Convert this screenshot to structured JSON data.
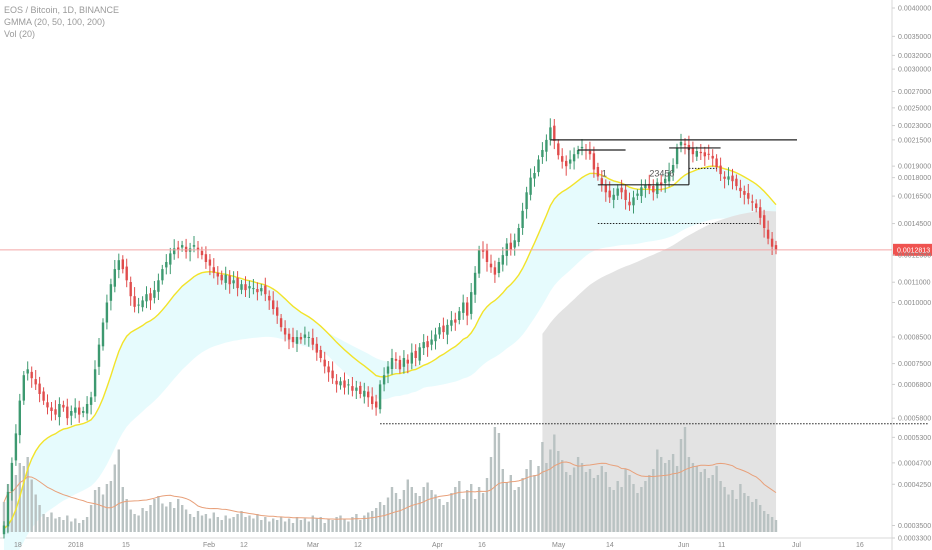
{
  "legend": {
    "symbol_line": "EOS / Bitcoin, 1D, BINANCE",
    "gmma_line": "GMMA (20, 50, 100, 200)",
    "vol_line": "Vol (20)"
  },
  "colors": {
    "up": "#3d9970",
    "down": "#e04c4c",
    "ema_fast": "#f2e32a",
    "band_light": "#e6fbfd",
    "band_gray": "#e3e3e3",
    "volume": "#b9c2c2",
    "vol_ma": "#e8a07a",
    "price_line": "#f3a6a6",
    "price_tag": "#ef5350"
  },
  "chart_data": {
    "type": "candlestick",
    "y_axis": {
      "ticks": [
        "0.0040000",
        "0.0035000",
        "0.0032000",
        "0.0030000",
        "0.0027000",
        "0.0025000",
        "0.0023000",
        "0.0021500",
        "0.0019000",
        "0.0018000",
        "0.0016500",
        "0.0014500",
        "0.0012500",
        "0.0011000",
        "0.0010000",
        "0.0008500",
        "0.0007500",
        "0.0006800",
        "0.0005800",
        "0.0005300",
        "0.0004700",
        "0.0004250",
        "0.0003500",
        "0.0003300"
      ],
      "current_price": "0.0012813",
      "scale": "log"
    },
    "x_axis": {
      "ticks": [
        "18",
        "2018",
        "15",
        "Feb",
        "12",
        "Mar",
        "12",
        "Apr",
        "16",
        "May",
        "14",
        "Jun",
        "11",
        "Jul",
        "16"
      ]
    },
    "annotations": {
      "count_1": "1",
      "count_2": "23456"
    },
    "closes": [
      0.00035,
      0.00041,
      0.00047,
      0.00054,
      0.00063,
      0.00071,
      0.00073,
      0.0007,
      0.00068,
      0.00065,
      0.00063,
      0.00061,
      0.0006,
      0.00059,
      0.00062,
      0.00061,
      0.00058,
      0.0006,
      0.00061,
      0.00059,
      0.0006,
      0.00062,
      0.00064,
      0.00073,
      0.00082,
      0.00091,
      0.001,
      0.00109,
      0.00117,
      0.00122,
      0.00117,
      0.00111,
      0.00103,
      0.00098,
      0.00099,
      0.00101,
      0.00104,
      0.00101,
      0.00106,
      0.00111,
      0.00117,
      0.00121,
      0.00126,
      0.00129,
      0.00128,
      0.00131,
      0.00127,
      0.00129,
      0.00131,
      0.00128,
      0.00125,
      0.00121,
      0.00119,
      0.00115,
      0.00113,
      0.00111,
      0.00114,
      0.00109,
      0.00111,
      0.00107,
      0.00109,
      0.00106,
      0.00108,
      0.00107,
      0.00105,
      0.00107,
      0.00104,
      0.00101,
      0.00097,
      0.00094,
      0.00089,
      0.00086,
      0.00084,
      0.00083,
      0.00085,
      0.00084,
      0.00086,
      0.00085,
      0.00082,
      0.00079,
      0.00077,
      0.00074,
      0.00072,
      0.0007,
      0.00068,
      0.00069,
      0.00067,
      0.00068,
      0.00066,
      0.00067,
      0.00065,
      0.00066,
      0.00064,
      0.00062,
      0.00061,
      0.00068,
      0.00071,
      0.00074,
      0.00077,
      0.00076,
      0.00073,
      0.00077,
      0.00075,
      0.00079,
      0.00077,
      0.00081,
      0.00083,
      0.00081,
      0.00084,
      0.00086,
      0.00089,
      0.00087,
      0.0009,
      0.00092,
      0.00091,
      0.00096,
      0.001,
      0.00094,
      0.00105,
      0.00115,
      0.00128,
      0.00127,
      0.00121,
      0.00118,
      0.00114,
      0.00121,
      0.00125,
      0.00132,
      0.00128,
      0.00134,
      0.00142,
      0.00154,
      0.00168,
      0.0018,
      0.00184,
      0.00196,
      0.00205,
      0.00215,
      0.00228,
      0.00214,
      0.002,
      0.00194,
      0.0019,
      0.00196,
      0.00201,
      0.00205,
      0.00208,
      0.00205,
      0.00201,
      0.00187,
      0.00181,
      0.00174,
      0.00168,
      0.00164,
      0.00166,
      0.00171,
      0.00168,
      0.00162,
      0.00158,
      0.00164,
      0.00167,
      0.00172,
      0.00174,
      0.00171,
      0.00168,
      0.00176,
      0.00174,
      0.00179,
      0.00185,
      0.00191,
      0.00207,
      0.00213,
      0.0021,
      0.00205,
      0.00201,
      0.00204,
      0.00202,
      0.00199,
      0.00201,
      0.00197,
      0.00189,
      0.00183,
      0.00179,
      0.00181,
      0.00177,
      0.00173,
      0.00169,
      0.00166,
      0.00163,
      0.0016,
      0.00156,
      0.00149,
      0.00142,
      0.00135,
      0.0013,
      0.00128
    ],
    "vol_heights": [
      0.2,
      0.32,
      0.28,
      0.38,
      0.46,
      0.44,
      0.5,
      0.35,
      0.25,
      0.18,
      0.12,
      0.1,
      0.13,
      0.09,
      0.1,
      0.08,
      0.11,
      0.07,
      0.09,
      0.06,
      0.08,
      0.1,
      0.18,
      0.28,
      0.3,
      0.25,
      0.32,
      0.34,
      0.45,
      0.55,
      0.3,
      0.22,
      0.15,
      0.12,
      0.11,
      0.16,
      0.14,
      0.18,
      0.22,
      0.24,
      0.19,
      0.17,
      0.2,
      0.16,
      0.22,
      0.18,
      0.15,
      0.12,
      0.1,
      0.14,
      0.11,
      0.12,
      0.09,
      0.13,
      0.1,
      0.08,
      0.11,
      0.09,
      0.1,
      0.12,
      0.14,
      0.1,
      0.11,
      0.09,
      0.12,
      0.08,
      0.1,
      0.07,
      0.09,
      0.08,
      0.1,
      0.07,
      0.09,
      0.06,
      0.1,
      0.08,
      0.09,
      0.07,
      0.11,
      0.09,
      0.1,
      0.06,
      0.09,
      0.08,
      0.1,
      0.11,
      0.09,
      0.07,
      0.1,
      0.12,
      0.08,
      0.11,
      0.13,
      0.14,
      0.16,
      0.2,
      0.18,
      0.23,
      0.3,
      0.26,
      0.22,
      0.28,
      0.35,
      0.3,
      0.26,
      0.24,
      0.3,
      0.33,
      0.28,
      0.25,
      0.22,
      0.18,
      0.2,
      0.26,
      0.3,
      0.34,
      0.22,
      0.28,
      0.32,
      0.22,
      0.3,
      0.26,
      0.36,
      0.5,
      0.7,
      0.66,
      0.42,
      0.33,
      0.38,
      0.28,
      0.3,
      0.36,
      0.42,
      0.48,
      0.38,
      0.44,
      0.6,
      0.46,
      0.55,
      0.65,
      0.54,
      0.48,
      0.4,
      0.38,
      0.43,
      0.5,
      0.46,
      0.4,
      0.42,
      0.36,
      0.38,
      0.44,
      0.4,
      0.3,
      0.28,
      0.34,
      0.3,
      0.42,
      0.38,
      0.32,
      0.26,
      0.3,
      0.34,
      0.38,
      0.42,
      0.55,
      0.5,
      0.46,
      0.48,
      0.52,
      0.44,
      0.62,
      0.7,
      0.5,
      0.46,
      0.44,
      0.4,
      0.42,
      0.36,
      0.38,
      0.44,
      0.34,
      0.3,
      0.25,
      0.28,
      0.22,
      0.32,
      0.26,
      0.24,
      0.2,
      0.22,
      0.18,
      0.14,
      0.12,
      0.1,
      0.08
    ]
  }
}
